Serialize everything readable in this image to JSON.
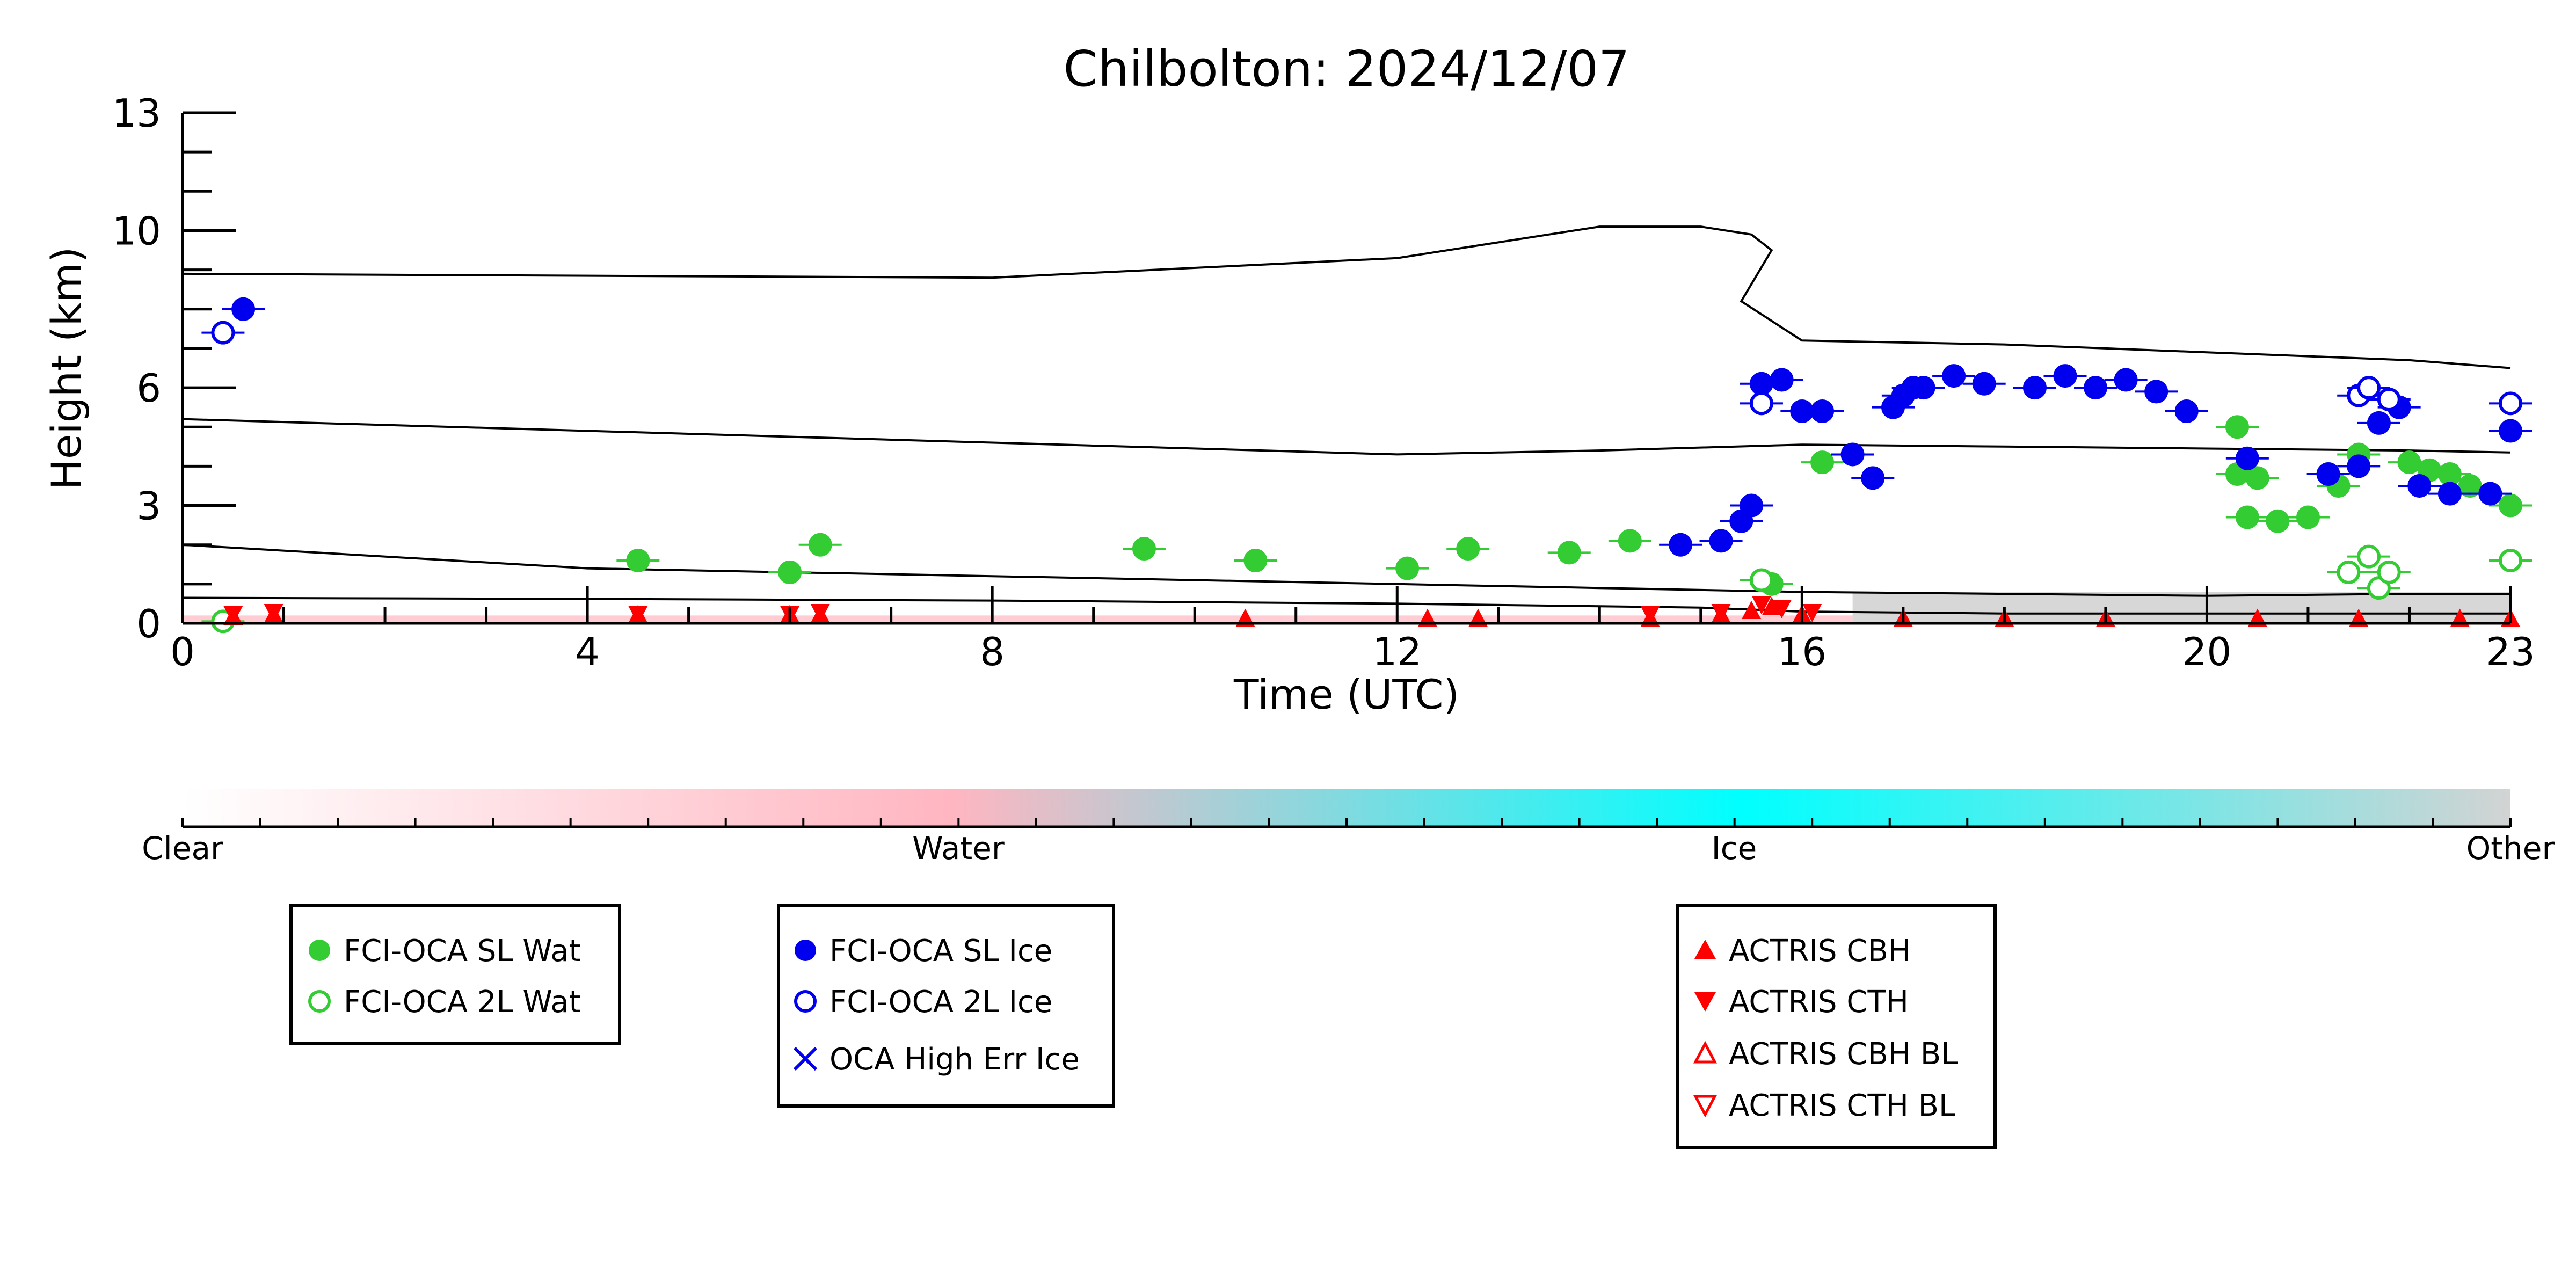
{
  "chart_data": {
    "type": "scatter",
    "title": "Chilbolton: 2024/12/07",
    "xlabel": "Time (UTC)",
    "ylabel": "Height (km)",
    "xlim": [
      0,
      23
    ],
    "ylim": [
      0,
      13
    ],
    "xticks": [
      0,
      4,
      8,
      12,
      16,
      20,
      23
    ],
    "yticks": [
      0,
      3,
      6,
      10,
      13
    ],
    "colorbar": {
      "labels": [
        "Clear",
        "Water",
        "Ice",
        "Other"
      ],
      "colors": {
        "clear": "#ffffff",
        "water": "#ffb6c1",
        "ice": "#00ffff",
        "other": "#d3d3d3"
      }
    },
    "legend_groups": [
      {
        "entries": [
          {
            "label": "FCI-OCA SL Wat",
            "marker": "filled-circle",
            "color": "#33cc33"
          },
          {
            "label": "FCI-OCA 2L Wat",
            "marker": "open-circle",
            "color": "#33cc33"
          }
        ]
      },
      {
        "entries": [
          {
            "label": "FCI-OCA SL Ice",
            "marker": "filled-circle",
            "color": "#0000ee"
          },
          {
            "label": "FCI-OCA 2L Ice",
            "marker": "open-circle",
            "color": "#0000ee"
          },
          {
            "label": "OCA High Err Ice",
            "marker": "x",
            "color": "#0000ee"
          }
        ]
      },
      {
        "entries": [
          {
            "label": "ACTRIS CBH",
            "marker": "triangle-up",
            "color": "#ff0000"
          },
          {
            "label": "ACTRIS CTH",
            "marker": "triangle-down",
            "color": "#ff0000"
          },
          {
            "label": "ACTRIS CBH BL",
            "marker": "open-triangle-up",
            "color": "#ff0000"
          },
          {
            "label": "ACTRIS CTH BL",
            "marker": "open-triangle-down",
            "color": "#ff0000"
          }
        ]
      }
    ],
    "lines": [
      {
        "x": [
          0,
          4,
          8,
          12,
          13,
          14,
          15,
          15.5,
          15.7,
          15.4,
          16,
          18,
          20,
          22,
          23
        ],
        "y": [
          8.9,
          8.85,
          8.8,
          9.3,
          9.7,
          10.1,
          10.1,
          9.9,
          9.5,
          8.2,
          7.2,
          7.1,
          6.9,
          6.7,
          6.5
        ]
      },
      {
        "x": [
          0,
          4,
          8,
          12,
          14,
          16,
          18,
          20,
          22,
          23
        ],
        "y": [
          5.2,
          4.9,
          4.6,
          4.3,
          4.4,
          4.55,
          4.5,
          4.45,
          4.4,
          4.35
        ]
      },
      {
        "x": [
          0,
          4,
          8,
          12,
          14,
          16,
          18,
          20,
          22,
          23
        ],
        "y": [
          2.0,
          1.4,
          1.2,
          1.0,
          0.9,
          0.8,
          0.75,
          0.7,
          0.75,
          0.75
        ]
      },
      {
        "x": [
          0,
          4,
          8,
          12,
          15,
          16,
          18,
          20,
          22,
          23
        ],
        "y": [
          0.65,
          0.62,
          0.58,
          0.5,
          0.4,
          0.3,
          0.25,
          0.25,
          0.25,
          0.25
        ]
      }
    ],
    "series": [
      {
        "name": "FCI-OCA SL Wat",
        "x": [
          4.5,
          6.0,
          6.3,
          9.5,
          10.6,
          12.1,
          12.7,
          13.7,
          14.3,
          15.7,
          16.2,
          20.3,
          20.3,
          20.4,
          20.5,
          20.7,
          21.0,
          21.2,
          21.3,
          21.5,
          22.0,
          22.2,
          22.4,
          22.6,
          23.0
        ],
        "y": [
          1.6,
          1.3,
          2.0,
          1.9,
          1.6,
          1.4,
          1.9,
          1.8,
          2.1,
          1.0,
          4.1,
          5.0,
          3.8,
          2.7,
          3.7,
          2.6,
          2.7,
          3.8,
          3.5,
          4.3,
          4.1,
          3.9,
          3.8,
          3.5,
          3.0
        ]
      },
      {
        "name": "FCI-OCA 2L Wat",
        "x": [
          0.4,
          15.6,
          21.4,
          21.6,
          21.7,
          21.8,
          23.0
        ],
        "y": [
          0.05,
          1.1,
          1.3,
          1.7,
          0.9,
          1.3,
          1.6
        ]
      },
      {
        "name": "FCI-OCA SL Ice",
        "x": [
          0.6,
          14.8,
          15.2,
          15.4,
          15.5,
          15.6,
          15.8,
          16.0,
          16.2,
          16.5,
          16.7,
          16.9,
          17.0,
          17.1,
          17.2,
          17.5,
          17.8,
          18.3,
          18.6,
          18.9,
          19.2,
          19.5,
          19.8,
          20.4,
          21.2,
          21.5,
          21.7,
          21.9,
          22.1,
          22.4,
          22.8,
          23.0
        ],
        "y": [
          8.0,
          2.0,
          2.1,
          2.6,
          3.0,
          6.1,
          6.2,
          5.4,
          5.4,
          4.3,
          3.7,
          5.5,
          5.8,
          6.0,
          6.0,
          6.3,
          6.1,
          6.0,
          6.3,
          6.0,
          6.2,
          5.9,
          5.4,
          4.2,
          3.8,
          4.0,
          5.1,
          5.5,
          3.5,
          3.3,
          3.3,
          4.9
        ]
      },
      {
        "name": "FCI-OCA 2L Ice",
        "x": [
          0.4,
          15.6,
          21.5,
          21.6,
          21.8,
          23.0
        ],
        "y": [
          7.4,
          5.6,
          5.8,
          6.0,
          5.7,
          5.6
        ]
      },
      {
        "name": "ACTRIS CBH",
        "x": [
          0.5,
          0.9,
          4.5,
          6.0,
          6.3,
          10.5,
          12.3,
          12.8,
          14.5,
          15.2,
          15.5,
          15.7,
          16.0,
          17.0,
          18.0,
          19.0,
          20.5,
          21.5,
          22.5,
          23.0
        ],
        "y": [
          0.15,
          0.2,
          0.2,
          0.2,
          0.2,
          0.1,
          0.1,
          0.1,
          0.1,
          0.2,
          0.3,
          0.4,
          0.2,
          0.1,
          0.1,
          0.1,
          0.1,
          0.1,
          0.1,
          0.1
        ]
      },
      {
        "name": "ACTRIS CTH",
        "x": [
          0.5,
          0.9,
          4.5,
          6.0,
          6.3,
          14.5,
          15.2,
          15.6,
          15.8,
          16.1
        ],
        "y": [
          0.25,
          0.3,
          0.25,
          0.25,
          0.3,
          0.25,
          0.3,
          0.5,
          0.4,
          0.3
        ]
      }
    ]
  }
}
